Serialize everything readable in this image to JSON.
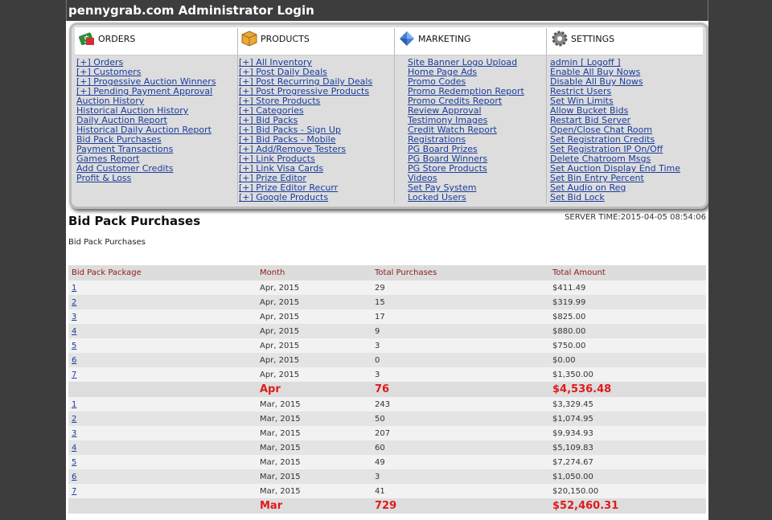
{
  "header": {
    "title": "pennygrab.com Administrator Login"
  },
  "menu": {
    "orders": {
      "title": "ORDERS",
      "links": [
        "[+] Orders",
        "[+] Customers",
        "[+] Progessive Auction Winners",
        "[+] Pending Payment Approval",
        "Auction History",
        "Historical Auction History",
        "Daily Auction Report",
        "Historical Daily Auction Report",
        "Bid Pack Purchases",
        "Payment Transactions",
        "Games Report",
        "Add Customer Credits",
        "Profit & Loss"
      ]
    },
    "products": {
      "title": "PRODUCTS",
      "links": [
        "[+] All Inventory",
        "[+] Post Daily Deals",
        "[+] Post Recurring Daily Deals",
        "[+] Post Progressive Products",
        "[+] Store Products",
        "[+] Categories",
        "[+] Bid Packs",
        "[+] Bid Packs - Sign Up",
        "[+] Bid Packs - Mobile",
        "[+] Add/Remove Testers",
        "[+] Link Products",
        "[+] Link Visa Cards",
        "[+] Prize Editor",
        "[+] Prize Editor Recurr",
        "[+] Google Products"
      ]
    },
    "marketing": {
      "title": "MARKETING",
      "links": [
        "Site Banner Logo Upload",
        "Home Page Ads",
        "Promo Codes",
        "Promo Redemption Report",
        "Promo Credits Report",
        "Review Approval",
        "Testimony Images",
        "Credit Watch Report",
        "Registrations",
        "PG Board Prizes",
        "PG Board Winners",
        "PG Store Products",
        "Videos",
        "Set Pay System",
        "Locked Users"
      ]
    },
    "settings": {
      "title": "SETTINGS",
      "links": [
        "admin [ Logoff ]",
        "Enable All Buy Nows",
        "Disable All Buy Nows",
        "Restrict Users",
        "Set Win Limits",
        "Allow Bucket Bids",
        "Restart Bid Server",
        "Open/Close Chat Room",
        "Set Registration Credits",
        "Set Registration IP On/Off",
        "Delete Chatroom Msgs",
        "Set Auction Display End Time",
        "Set Bin Entry Percent",
        "Set Audio on Reg",
        "Set Bid Lock"
      ]
    }
  },
  "page": {
    "title": "Bid Pack Purchases",
    "server_time": "SERVER TIME:2015-04-05 08:54:06",
    "subtitle": "Bid Pack Purchases"
  },
  "table": {
    "headers": [
      "Bid Pack Package",
      "Month",
      "Total Purchases",
      "Total Amount"
    ],
    "rows": [
      {
        "pkg": "1",
        "month": "Apr, 2015",
        "purchases": "29",
        "amount": "$411.49"
      },
      {
        "pkg": "2",
        "month": "Apr, 2015",
        "purchases": "15",
        "amount": "$319.99"
      },
      {
        "pkg": "3",
        "month": "Apr, 2015",
        "purchases": "17",
        "amount": "$825.00"
      },
      {
        "pkg": "4",
        "month": "Apr, 2015",
        "purchases": "9",
        "amount": "$880.00"
      },
      {
        "pkg": "5",
        "month": "Apr, 2015",
        "purchases": "3",
        "amount": "$750.00"
      },
      {
        "pkg": "6",
        "month": "Apr, 2015",
        "purchases": "0",
        "amount": "$0.00"
      },
      {
        "pkg": "7",
        "month": "Apr, 2015",
        "purchases": "3",
        "amount": "$1,350.00"
      },
      {
        "total": true,
        "month": "Apr",
        "purchases": "76",
        "amount": "$4,536.48"
      },
      {
        "pkg": "1",
        "month": "Mar, 2015",
        "purchases": "243",
        "amount": "$3,329.45"
      },
      {
        "pkg": "2",
        "month": "Mar, 2015",
        "purchases": "50",
        "amount": "$1,074.95"
      },
      {
        "pkg": "3",
        "month": "Mar, 2015",
        "purchases": "207",
        "amount": "$9,934.93"
      },
      {
        "pkg": "4",
        "month": "Mar, 2015",
        "purchases": "60",
        "amount": "$5,109.83"
      },
      {
        "pkg": "5",
        "month": "Mar, 2015",
        "purchases": "49",
        "amount": "$7,274.67"
      },
      {
        "pkg": "6",
        "month": "Mar, 2015",
        "purchases": "3",
        "amount": "$1,050.00"
      },
      {
        "pkg": "7",
        "month": "Mar, 2015",
        "purchases": "41",
        "amount": "$20,150.00"
      },
      {
        "total": true,
        "month": "Mar",
        "purchases": "729",
        "amount": "$52,460.31"
      }
    ]
  },
  "icons": {
    "orders": "money-icon",
    "products": "box-icon",
    "marketing": "diamond-icon",
    "settings": "gear-icon"
  },
  "colors": {
    "link": "#1a3c9c",
    "header_text": "#8b1a1a",
    "total_text": "#e01b1b"
  }
}
